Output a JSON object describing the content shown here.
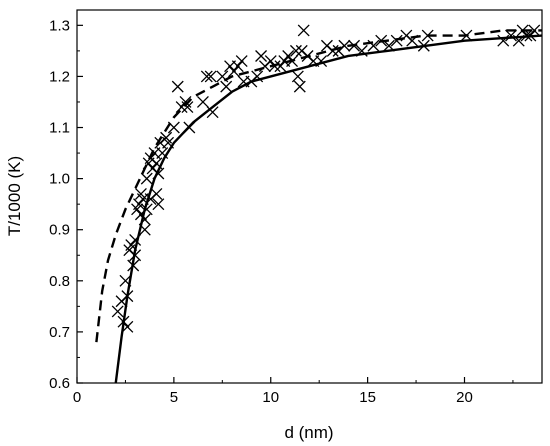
{
  "chart_data": {
    "type": "scatter",
    "title": "",
    "xlabel": "d (nm)",
    "ylabel": "T/1000 (K)",
    "xlim": [
      0,
      24
    ],
    "ylim": [
      0.6,
      1.33
    ],
    "grid": false,
    "legend": "none",
    "xticks": [
      0,
      5,
      10,
      15,
      20
    ],
    "yticks": [
      0.6,
      0.7,
      0.8,
      0.9,
      1.0,
      1.1,
      1.2,
      1.3
    ],
    "xtick_labels": [
      "0",
      "5",
      "10",
      "15",
      "20"
    ],
    "ytick_labels": [
      "0.6",
      "0.7",
      "0.8",
      "0.9",
      "1.0",
      "1.1",
      "1.2",
      "1.3"
    ],
    "series": [
      {
        "kind": "scatter",
        "marker": "x",
        "color": "#000000",
        "points": [
          [
            2.1,
            0.74
          ],
          [
            2.3,
            0.76
          ],
          [
            2.4,
            0.72
          ],
          [
            2.5,
            0.8
          ],
          [
            2.6,
            0.71
          ],
          [
            2.6,
            0.77
          ],
          [
            2.7,
            0.86
          ],
          [
            2.8,
            0.87
          ],
          [
            2.9,
            0.83
          ],
          [
            3.0,
            0.88
          ],
          [
            3.0,
            0.85
          ],
          [
            3.1,
            0.94
          ],
          [
            3.2,
            0.95
          ],
          [
            3.3,
            0.93
          ],
          [
            3.3,
            0.97
          ],
          [
            3.4,
            0.96
          ],
          [
            3.5,
            0.92
          ],
          [
            3.5,
            0.9
          ],
          [
            3.6,
            0.94
          ],
          [
            3.6,
            1.0
          ],
          [
            3.7,
            1.03
          ],
          [
            3.8,
            0.96
          ],
          [
            3.8,
            1.04
          ],
          [
            3.9,
            1.02
          ],
          [
            4.0,
            1.05
          ],
          [
            4.1,
            1.03
          ],
          [
            4.1,
            0.97
          ],
          [
            4.2,
            0.95
          ],
          [
            4.2,
            1.01
          ],
          [
            4.3,
            1.07
          ],
          [
            4.4,
            1.05
          ],
          [
            4.6,
            1.08
          ],
          [
            4.7,
            1.07
          ],
          [
            5.0,
            1.1
          ],
          [
            5.2,
            1.18
          ],
          [
            5.4,
            1.14
          ],
          [
            5.6,
            1.15
          ],
          [
            5.7,
            1.14
          ],
          [
            5.8,
            1.1
          ],
          [
            6.5,
            1.15
          ],
          [
            6.7,
            1.2
          ],
          [
            6.9,
            1.2
          ],
          [
            7.0,
            1.13
          ],
          [
            7.5,
            1.2
          ],
          [
            7.7,
            1.18
          ],
          [
            7.9,
            1.22
          ],
          [
            8.1,
            1.21
          ],
          [
            8.3,
            1.22
          ],
          [
            8.5,
            1.23
          ],
          [
            8.6,
            1.19
          ],
          [
            9.0,
            1.19
          ],
          [
            9.3,
            1.2
          ],
          [
            9.5,
            1.24
          ],
          [
            9.7,
            1.22
          ],
          [
            10.0,
            1.23
          ],
          [
            10.2,
            1.22
          ],
          [
            10.5,
            1.22
          ],
          [
            10.7,
            1.23
          ],
          [
            10.9,
            1.24
          ],
          [
            11.1,
            1.23
          ],
          [
            11.3,
            1.25
          ],
          [
            11.4,
            1.2
          ],
          [
            11.5,
            1.18
          ],
          [
            11.6,
            1.25
          ],
          [
            11.7,
            1.29
          ],
          [
            11.9,
            1.24
          ],
          [
            12.2,
            1.23
          ],
          [
            12.6,
            1.23
          ],
          [
            12.9,
            1.26
          ],
          [
            13.2,
            1.25
          ],
          [
            13.5,
            1.25
          ],
          [
            13.8,
            1.26
          ],
          [
            14.3,
            1.26
          ],
          [
            14.7,
            1.25
          ],
          [
            15.3,
            1.26
          ],
          [
            15.7,
            1.27
          ],
          [
            16.1,
            1.26
          ],
          [
            16.5,
            1.27
          ],
          [
            17.0,
            1.28
          ],
          [
            17.3,
            1.27
          ],
          [
            17.9,
            1.26
          ],
          [
            18.1,
            1.28
          ],
          [
            20.1,
            1.28
          ],
          [
            22.0,
            1.27
          ],
          [
            22.4,
            1.28
          ],
          [
            22.8,
            1.27
          ],
          [
            23.0,
            1.29
          ],
          [
            23.2,
            1.28
          ],
          [
            23.4,
            1.28
          ],
          [
            23.6,
            1.29
          ]
        ]
      },
      {
        "kind": "line",
        "style": "solid",
        "color": "#000000",
        "points": [
          [
            2.0,
            0.6
          ],
          [
            2.3,
            0.69
          ],
          [
            2.6,
            0.77
          ],
          [
            3.0,
            0.86
          ],
          [
            3.5,
            0.94
          ],
          [
            4.0,
            1.0
          ],
          [
            4.5,
            1.04
          ],
          [
            5.0,
            1.07
          ],
          [
            6.0,
            1.11
          ],
          [
            7.0,
            1.14
          ],
          [
            8.0,
            1.17
          ],
          [
            9.0,
            1.19
          ],
          [
            10.0,
            1.2
          ],
          [
            12.0,
            1.22
          ],
          [
            14.0,
            1.24
          ],
          [
            16.0,
            1.25
          ],
          [
            18.0,
            1.26
          ],
          [
            20.0,
            1.27
          ],
          [
            22.0,
            1.275
          ],
          [
            24.0,
            1.28
          ]
        ]
      },
      {
        "kind": "line",
        "style": "dashed",
        "color": "#000000",
        "points": [
          [
            1.0,
            0.68
          ],
          [
            1.3,
            0.78
          ],
          [
            1.6,
            0.84
          ],
          [
            2.0,
            0.89
          ],
          [
            2.5,
            0.94
          ],
          [
            3.0,
            0.98
          ],
          [
            3.5,
            1.02
          ],
          [
            4.0,
            1.06
          ],
          [
            5.0,
            1.12
          ],
          [
            6.0,
            1.16
          ],
          [
            7.0,
            1.18
          ],
          [
            8.0,
            1.2
          ],
          [
            9.0,
            1.21
          ],
          [
            10.0,
            1.22
          ],
          [
            12.0,
            1.24
          ],
          [
            14.0,
            1.26
          ],
          [
            16.0,
            1.27
          ],
          [
            18.0,
            1.28
          ],
          [
            20.0,
            1.28
          ],
          [
            22.0,
            1.29
          ],
          [
            24.0,
            1.29
          ]
        ]
      }
    ]
  }
}
